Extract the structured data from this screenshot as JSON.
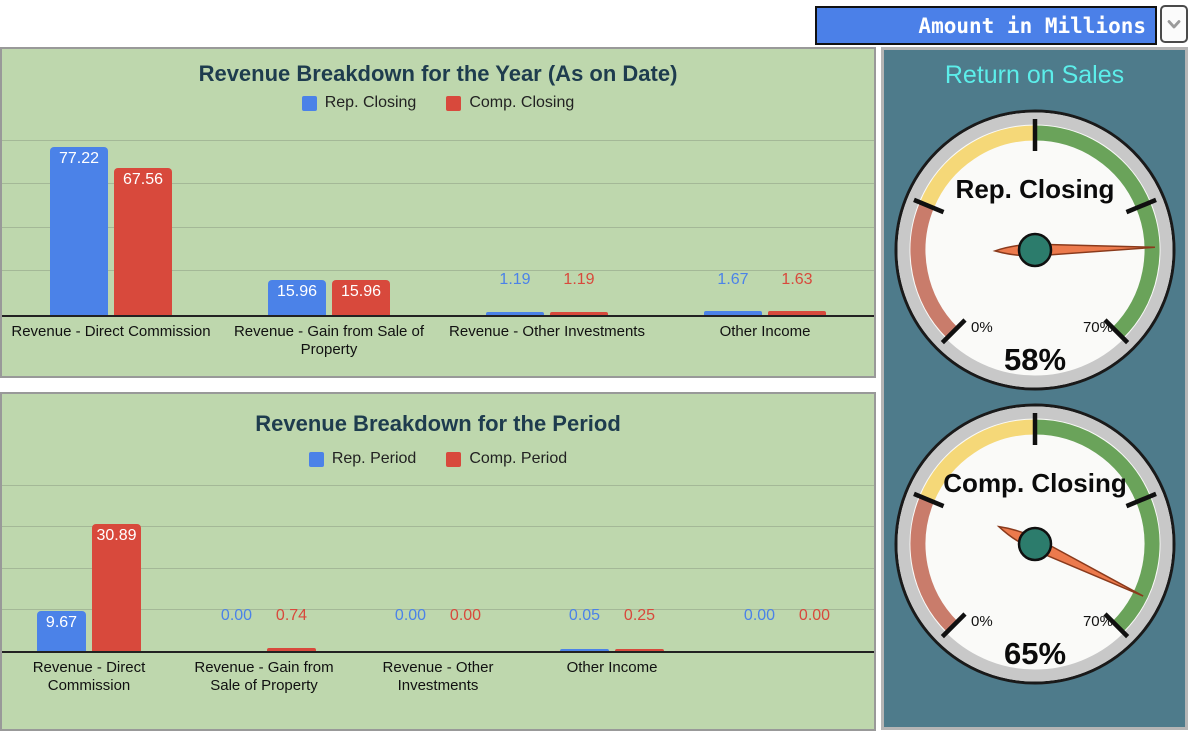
{
  "controls": {
    "unit_selector": {
      "value": "Amount in Millions"
    }
  },
  "colors": {
    "dropdown_bg": "#4b80e8",
    "series_blue": "#4b82e8",
    "series_red": "#d8493c",
    "chart_panel_bg": "#bed7ad",
    "grid": "#a4b897",
    "axis": "#222222",
    "chart_title": "#1e3c4e",
    "gauge_panel_bg": "#4e7b8b",
    "gauge_title": "#5ceeea",
    "gauge_face": "#fafaf8",
    "gauge_rim": "#c8c8c8",
    "needle": "#ec7a4d",
    "needle_outline": "#8a3a1c",
    "hub": "#2c7c6c"
  },
  "chart_data": [
    {
      "type": "bar",
      "title": "Revenue Breakdown for the Year (As on Date)",
      "categories": [
        "Revenue - Direct Commission",
        "Revenue - Gain from Sale of Property",
        "Revenue - Other Investments",
        "Other Income"
      ],
      "series": [
        {
          "name": "Rep. Closing",
          "values": [
            77.22,
            15.96,
            1.19,
            1.67
          ]
        },
        {
          "name": "Comp. Closing",
          "values": [
            67.56,
            15.96,
            1.19,
            1.63
          ]
        }
      ],
      "ylim": [
        0,
        85
      ],
      "grid_step": 20,
      "grid": true,
      "legend_position": "top"
    },
    {
      "type": "bar",
      "title": "Revenue Breakdown for the Period",
      "categories": [
        "Revenue - Direct Commission",
        "Revenue - Gain from Sale of Property",
        "Revenue - Other Investments",
        "Other Income",
        ""
      ],
      "series": [
        {
          "name": "Rep. Period",
          "values": [
            9.67,
            0.0,
            0.0,
            0.05,
            0.0
          ]
        },
        {
          "name": "Comp. Period",
          "values": [
            30.89,
            0.74,
            0.0,
            0.25,
            0.0
          ]
        }
      ],
      "ylim": [
        0,
        42
      ],
      "grid_step": 10,
      "grid": true,
      "legend_position": "top"
    },
    {
      "type": "gauge",
      "title": "Return on Sales",
      "min": 0,
      "max": 70,
      "start_angle": 225,
      "sweep": 270,
      "bands": [
        {
          "from": 0,
          "to": 17.5,
          "color": "#c97c6b"
        },
        {
          "from": 17.5,
          "to": 35,
          "color": "#f5d878"
        },
        {
          "from": 35,
          "to": 70,
          "color": "#6aa35a"
        }
      ],
      "ticks": [
        0,
        17.5,
        35,
        52.5,
        70
      ],
      "tick_labels": {
        "min": "0%",
        "max": "70%"
      },
      "gauges": [
        {
          "label": "Rep. Closing",
          "value": 58,
          "display": "58%"
        },
        {
          "label": "Comp. Closing",
          "value": 65,
          "display": "65%"
        }
      ]
    }
  ]
}
